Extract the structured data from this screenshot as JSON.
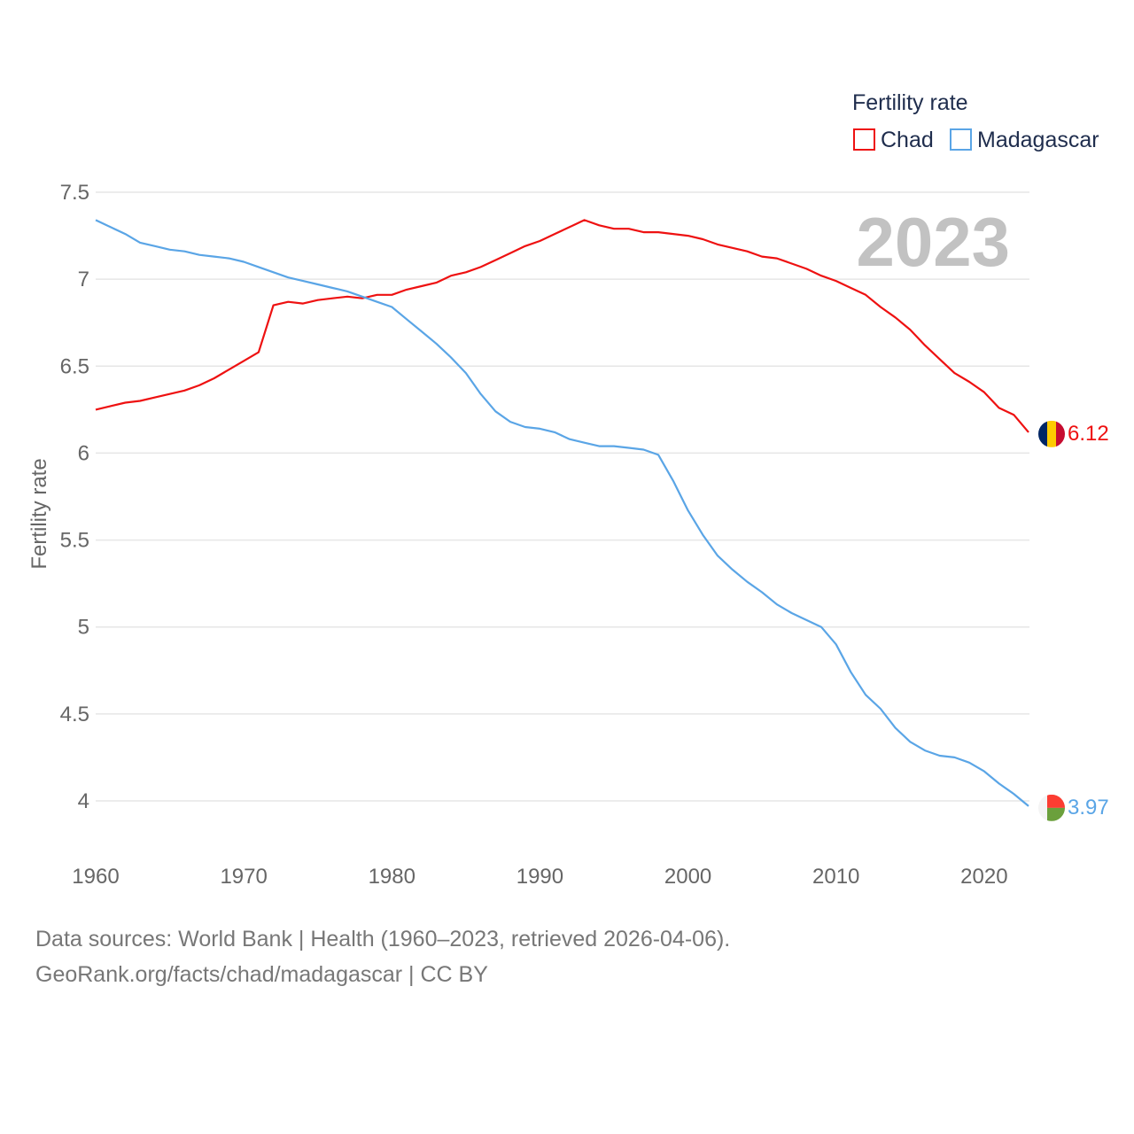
{
  "chart_data": {
    "type": "line",
    "ylabel": "Fertility rate",
    "xlabel": "",
    "legend_title": "Fertility rate",
    "legend_position": "top-right",
    "year_label": "2023",
    "xlim": [
      1960,
      2023
    ],
    "ylim": [
      4,
      7.5
    ],
    "x_ticks": [
      1960,
      1970,
      1980,
      1990,
      2000,
      2010,
      2020
    ],
    "y_ticks": [
      4,
      4.5,
      5,
      5.5,
      6,
      6.5,
      7,
      7.5
    ],
    "y_tick_labels": [
      "4",
      "4.5",
      "5",
      "5.5",
      "6",
      "6.5",
      "7",
      "7.5"
    ],
    "series": [
      {
        "name": "Chad",
        "color": "#ee1111",
        "end_label": "6.12",
        "flag": "chad-flag",
        "x": [
          1960,
          1961,
          1962,
          1963,
          1964,
          1965,
          1966,
          1967,
          1968,
          1969,
          1970,
          1971,
          1972,
          1973,
          1974,
          1975,
          1976,
          1977,
          1978,
          1979,
          1980,
          1981,
          1982,
          1983,
          1984,
          1985,
          1986,
          1987,
          1988,
          1989,
          1990,
          1991,
          1992,
          1993,
          1994,
          1995,
          1996,
          1997,
          1998,
          1999,
          2000,
          2001,
          2002,
          2003,
          2004,
          2005,
          2006,
          2007,
          2008,
          2009,
          2010,
          2011,
          2012,
          2013,
          2014,
          2015,
          2016,
          2017,
          2018,
          2019,
          2020,
          2021,
          2022,
          2023
        ],
        "values": [
          6.25,
          6.27,
          6.29,
          6.3,
          6.32,
          6.34,
          6.36,
          6.39,
          6.43,
          6.48,
          6.53,
          6.58,
          6.85,
          6.87,
          6.86,
          6.88,
          6.89,
          6.9,
          6.89,
          6.91,
          6.91,
          6.94,
          6.96,
          6.98,
          7.02,
          7.04,
          7.07,
          7.11,
          7.15,
          7.19,
          7.22,
          7.26,
          7.3,
          7.34,
          7.31,
          7.29,
          7.29,
          7.27,
          7.27,
          7.26,
          7.25,
          7.23,
          7.2,
          7.18,
          7.16,
          7.13,
          7.12,
          7.09,
          7.06,
          7.02,
          6.99,
          6.95,
          6.91,
          6.84,
          6.78,
          6.71,
          6.62,
          6.54,
          6.46,
          6.41,
          6.35,
          6.26,
          6.22,
          6.12
        ]
      },
      {
        "name": "Madagascar",
        "color": "#5aa5e6",
        "end_label": "3.97",
        "flag": "madagascar-flag",
        "x": [
          1960,
          1961,
          1962,
          1963,
          1964,
          1965,
          1966,
          1967,
          1968,
          1969,
          1970,
          1971,
          1972,
          1973,
          1974,
          1975,
          1976,
          1977,
          1978,
          1979,
          1980,
          1981,
          1982,
          1983,
          1984,
          1985,
          1986,
          1987,
          1988,
          1989,
          1990,
          1991,
          1992,
          1993,
          1994,
          1995,
          1996,
          1997,
          1998,
          1999,
          2000,
          2001,
          2002,
          2003,
          2004,
          2005,
          2006,
          2007,
          2008,
          2009,
          2010,
          2011,
          2012,
          2013,
          2014,
          2015,
          2016,
          2017,
          2018,
          2019,
          2020,
          2021,
          2022,
          2023
        ],
        "values": [
          7.34,
          7.3,
          7.26,
          7.21,
          7.19,
          7.17,
          7.16,
          7.14,
          7.13,
          7.12,
          7.1,
          7.07,
          7.04,
          7.01,
          6.99,
          6.97,
          6.95,
          6.93,
          6.9,
          6.87,
          6.84,
          6.77,
          6.7,
          6.63,
          6.55,
          6.46,
          6.34,
          6.24,
          6.18,
          6.15,
          6.14,
          6.12,
          6.08,
          6.06,
          6.04,
          6.04,
          6.03,
          6.02,
          5.99,
          5.84,
          5.67,
          5.53,
          5.41,
          5.33,
          5.26,
          5.2,
          5.13,
          5.08,
          5.04,
          5.0,
          4.9,
          4.74,
          4.61,
          4.53,
          4.42,
          4.34,
          4.29,
          4.26,
          4.25,
          4.22,
          4.17,
          4.1,
          4.04,
          3.97
        ]
      }
    ]
  },
  "footer": {
    "source_line": "Data sources: World Bank | Health (1960–2023, retrieved 2026-04-06).",
    "link_line": "GeoRank.org/facts/chad/madagascar | CC BY"
  }
}
